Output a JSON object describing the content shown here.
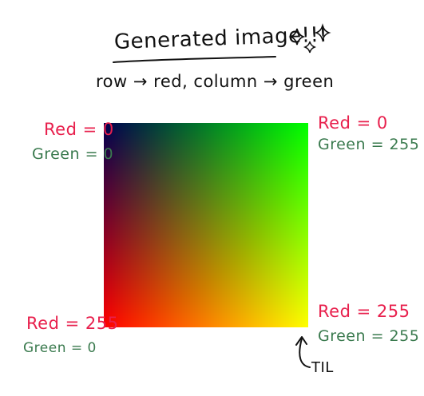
{
  "title": "Generated image!!!",
  "subtitle": "row → red, column → green",
  "corners": {
    "top_left": {
      "red": "Red = 0",
      "green": "Green = 0"
    },
    "top_right": {
      "red": "Red = 0",
      "green": "Green = 255"
    },
    "bottom_left": {
      "red": "Red = 255",
      "green": "Green = 0"
    },
    "bottom_right": {
      "red": "Red = 255",
      "green": "Green = 255"
    }
  },
  "annotation": "TIL",
  "colors": {
    "red_label": "#e8204d",
    "green_label": "#3a7a4e",
    "ink": "#111111"
  }
}
